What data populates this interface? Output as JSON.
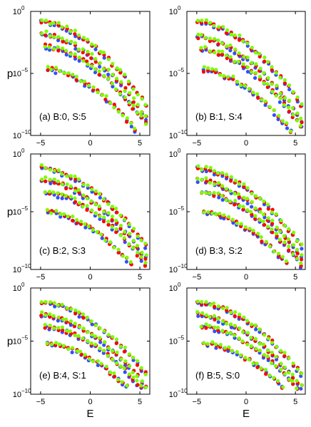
{
  "chart_data": [
    {
      "type": "scatter",
      "label": "(a) B:0, S:5",
      "xlabel": "",
      "ylabel": "p",
      "xticks": [
        "−5",
        "0",
        "5"
      ],
      "yticks": [
        "10",
        "10",
        "10"
      ],
      "yexp": [
        "0",
        "−5",
        "−10"
      ],
      "xlim": [
        -6,
        6
      ],
      "ylim": [
        -10,
        0
      ],
      "yscale": "log",
      "series": [
        {
          "name": "",
          "color": "#7CFC00"
        },
        {
          "name": "",
          "color": "#ff0000"
        },
        {
          "name": "",
          "color": "#3050ff"
        }
      ],
      "bands": [
        [
          -4.9,
          -0.8,
          -4.2,
          -0.2
        ],
        [
          -4.9,
          -1.8,
          -3.0,
          -1.5
        ],
        [
          -4.5,
          -2.8,
          -2.6,
          -4.1
        ],
        [
          -4.3,
          -4.6,
          -2.0,
          -6.6
        ]
      ]
    },
    {
      "type": "scatter",
      "label": "(b) B:1, S:4",
      "xlabel": "",
      "ylabel": "",
      "xticks": [
        "−5",
        "0",
        "5"
      ],
      "yticks": [
        "10",
        "10",
        "10"
      ],
      "yexp": [
        "0",
        "−5",
        "−10"
      ],
      "xlim": [
        -6,
        6
      ],
      "ylim": [
        -10,
        0
      ],
      "yscale": "log",
      "series": [
        {
          "name": "",
          "color": "#7CFC00"
        },
        {
          "name": "",
          "color": "#ff0000"
        },
        {
          "name": "",
          "color": "#3050ff"
        }
      ],
      "bands": [
        [
          -4.9,
          -0.8,
          -4.2,
          -0.2
        ],
        [
          -4.9,
          -2.0,
          -3.0,
          -1.7
        ],
        [
          -4.5,
          -3.0,
          -2.6,
          -4.3
        ],
        [
          -4.3,
          -4.7,
          -2.0,
          -6.8
        ]
      ]
    },
    {
      "type": "scatter",
      "label": "(c) B:2, S:3",
      "xlabel": "",
      "ylabel": "p",
      "xticks": [
        "−5",
        "0",
        "5"
      ],
      "yticks": [
        "10",
        "10",
        "10"
      ],
      "yexp": [
        "0",
        "−5",
        "−10"
      ],
      "xlim": [
        -6,
        6
      ],
      "ylim": [
        -10,
        0
      ],
      "yscale": "log",
      "series": [
        {
          "name": "",
          "color": "#7CFC00"
        },
        {
          "name": "",
          "color": "#ff0000"
        },
        {
          "name": "",
          "color": "#3050ff"
        }
      ],
      "bands": [
        [
          -4.9,
          -1.2,
          -4.3,
          -0.3
        ],
        [
          -4.9,
          -2.2,
          -3.1,
          -1.9
        ],
        [
          -4.5,
          -3.3,
          -2.7,
          -4.6
        ],
        [
          -4.3,
          -5.0,
          -2.1,
          -6.9
        ]
      ]
    },
    {
      "type": "scatter",
      "label": "(d) B:3, S:2",
      "xlabel": "",
      "ylabel": "",
      "xticks": [
        "−5",
        "0",
        "5"
      ],
      "yticks": [
        "10",
        "10",
        "10"
      ],
      "yexp": [
        "0",
        "−5",
        "−10"
      ],
      "xlim": [
        -6,
        6
      ],
      "ylim": [
        -10,
        0
      ],
      "yscale": "log",
      "series": [
        {
          "name": "",
          "color": "#7CFC00"
        },
        {
          "name": "",
          "color": "#ff0000"
        },
        {
          "name": "",
          "color": "#3050ff"
        }
      ],
      "bands": [
        [
          -4.9,
          -1.2,
          -4.3,
          -0.3
        ],
        [
          -4.9,
          -2.2,
          -3.1,
          -1.9
        ],
        [
          -4.5,
          -3.3,
          -2.7,
          -4.6
        ],
        [
          -4.3,
          -5.0,
          -2.1,
          -6.9
        ]
      ]
    },
    {
      "type": "scatter",
      "label": "(e) B:4, S:1",
      "xlabel": "E",
      "ylabel": "p",
      "xticks": [
        "−5",
        "0",
        "5"
      ],
      "yticks": [
        "10",
        "10",
        "10"
      ],
      "yexp": [
        "0",
        "−5",
        "−10"
      ],
      "xlim": [
        -6,
        6
      ],
      "ylim": [
        -10,
        0
      ],
      "yscale": "log",
      "series": [
        {
          "name": "",
          "color": "#7CFC00"
        },
        {
          "name": "",
          "color": "#ff0000"
        },
        {
          "name": "",
          "color": "#3050ff"
        }
      ],
      "bands": [
        [
          -4.9,
          -1.3,
          -4.4,
          -0.4
        ],
        [
          -4.9,
          -2.5,
          -3.2,
          -2.1
        ],
        [
          -4.5,
          -3.6,
          -2.8,
          -4.8
        ],
        [
          -4.3,
          -5.2,
          -2.2,
          -7.1
        ]
      ]
    },
    {
      "type": "scatter",
      "label": "(f) B:5, S:0",
      "xlabel": "E",
      "ylabel": "",
      "xticks": [
        "−5",
        "0",
        "5"
      ],
      "yticks": [
        "10",
        "10",
        "10"
      ],
      "yexp": [
        "0",
        "−5",
        "−10"
      ],
      "xlim": [
        -6,
        6
      ],
      "ylim": [
        -10,
        0
      ],
      "yscale": "log",
      "series": [
        {
          "name": "",
          "color": "#7CFC00"
        },
        {
          "name": "",
          "color": "#ff0000"
        },
        {
          "name": "",
          "color": "#3050ff"
        }
      ],
      "bands": [
        [
          -4.9,
          -1.3,
          -4.4,
          -0.4
        ],
        [
          -4.9,
          -2.5,
          -3.2,
          -2.1
        ],
        [
          -4.5,
          -3.6,
          -2.8,
          -4.8
        ],
        [
          -4.3,
          -5.2,
          -2.2,
          -7.1
        ]
      ]
    }
  ]
}
